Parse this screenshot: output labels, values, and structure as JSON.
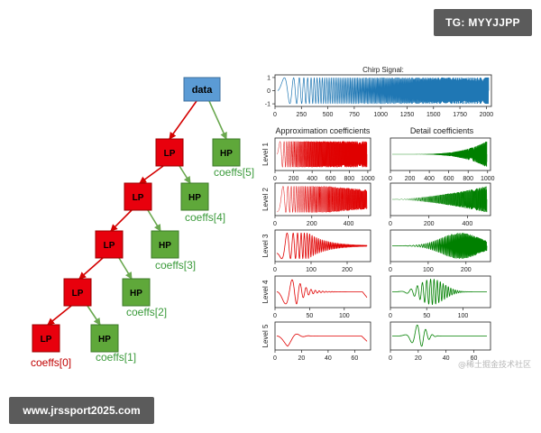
{
  "overlays": {
    "top_badge": "TG: MYYJJPP",
    "bottom_badge": "www.jrssport2025.com",
    "watermark": "@稀土掘金技术社区"
  },
  "tree": {
    "root": "data",
    "lp": "LP",
    "hp": "HP",
    "coeffs": [
      "coeffs[5]",
      "coeffs[4]",
      "coeffs[3]",
      "coeffs[2]",
      "coeffs[1]",
      "coeffs[0]"
    ],
    "colors": {
      "root": "#5b9bd5",
      "lp": "#e8000d",
      "hp": "#5fa83a",
      "lp_arrow": "#d40000",
      "hp_arrow": "#6aa84f",
      "coeffs_hp": "#3a9a3a",
      "coeffs_lp": "#c00000"
    }
  },
  "chart_data": [
    {
      "type": "line",
      "title": "Chirp Signal:",
      "x_ticks": [
        0,
        250,
        500,
        750,
        1000,
        1250,
        1500,
        1750,
        2000
      ],
      "y_ticks": [
        1,
        0,
        -1
      ],
      "xlim": [
        0,
        2048
      ],
      "ylim": [
        -1.2,
        1.2
      ],
      "color": "#1f77b4"
    },
    {
      "type": "line",
      "column_titles": [
        "Approximation coefficients",
        "Detail coefficients"
      ],
      "levels": [
        {
          "label": "Level 1",
          "x_ticks": [
            0,
            200,
            400,
            600,
            800,
            1000
          ],
          "xlim": [
            0,
            1030
          ]
        },
        {
          "label": "Level 2",
          "x_ticks": [
            0,
            200,
            400
          ],
          "xlim": [
            0,
            520
          ]
        },
        {
          "label": "Level 3",
          "x_ticks": [
            0,
            100,
            200
          ],
          "xlim": [
            0,
            265
          ]
        },
        {
          "label": "Level 4",
          "x_ticks": [
            0,
            50,
            100
          ],
          "xlim": [
            0,
            138
          ]
        },
        {
          "label": "Level 5",
          "x_ticks": [
            0,
            20,
            40,
            60
          ],
          "xlim": [
            0,
            72
          ]
        }
      ],
      "approx_color": "#e00000",
      "detail_color": "#008000"
    }
  ]
}
